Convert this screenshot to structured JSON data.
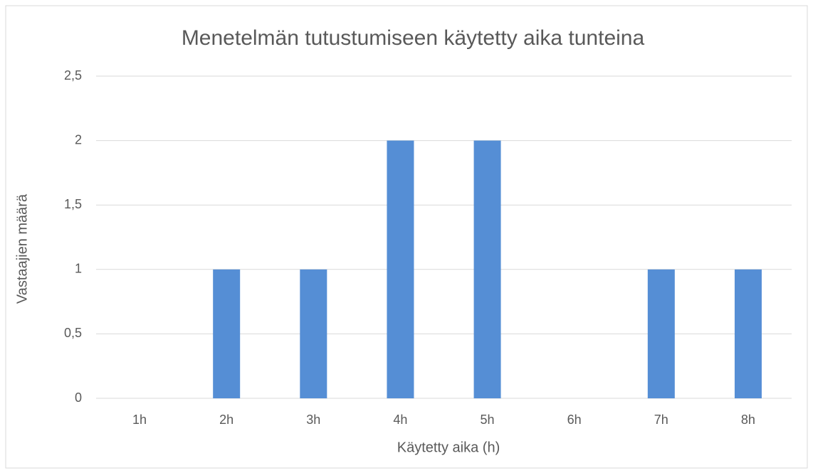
{
  "chart_data": {
    "type": "bar",
    "title": "Menetelmän tutustumiseen käytetty aika tunteina",
    "x_label": "Käytetty aika (h)",
    "y_label": "Vastaajien määrä",
    "categories": [
      "1h",
      "2h",
      "3h",
      "4h",
      "5h",
      "6h",
      "7h",
      "8h"
    ],
    "values": [
      0,
      1,
      1,
      2,
      2,
      0,
      1,
      1
    ],
    "color": "#558ed5",
    "ylim": [
      0,
      2.5
    ],
    "yticks": [
      0,
      {
        "value": 0.5,
        "label": "0,5"
      },
      1,
      {
        "value": 1.5,
        "label": "1,5"
      },
      2,
      {
        "value": 2.5,
        "label": "2,5"
      }
    ],
    "grid": true
  }
}
